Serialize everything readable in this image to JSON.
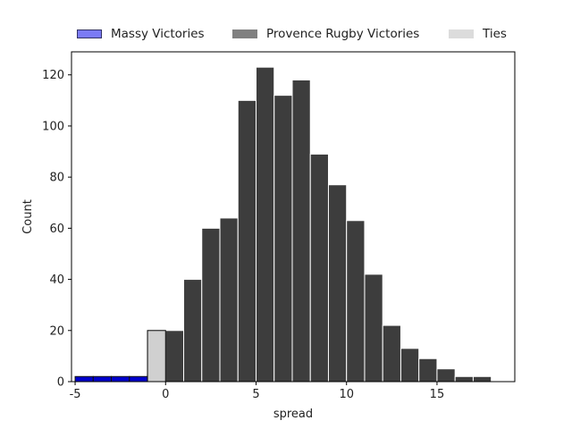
{
  "chart_data": {
    "type": "bar",
    "title": "",
    "xlabel": "spread",
    "ylabel": "Count",
    "xlim": [
      -5.2,
      19.3
    ],
    "ylim": [
      0,
      129
    ],
    "xticks": [
      -5,
      0,
      5,
      10,
      15
    ],
    "yticks": [
      0,
      20,
      40,
      60,
      80,
      100,
      120
    ],
    "bin_width": 1,
    "legend_position": "top",
    "series": [
      {
        "name": "Massy Victories",
        "color": "#0000cc",
        "legend_color": "#7b7bf5",
        "bins": [
          {
            "x": -4.5,
            "count": 2
          },
          {
            "x": -3.5,
            "count": 2
          },
          {
            "x": -2.5,
            "count": 2
          },
          {
            "x": -1.5,
            "count": 2
          },
          {
            "x": -0.5,
            "count": 3
          }
        ]
      },
      {
        "name": "Provence Rugby Victories",
        "color": "#3d3d3d",
        "legend_color": "#808080",
        "bins": [
          {
            "x": 0.5,
            "count": 20
          },
          {
            "x": 1.5,
            "count": 40
          },
          {
            "x": 2.5,
            "count": 60
          },
          {
            "x": 3.5,
            "count": 64
          },
          {
            "x": 4.5,
            "count": 110
          },
          {
            "x": 5.5,
            "count": 123
          },
          {
            "x": 6.5,
            "count": 112
          },
          {
            "x": 7.5,
            "count": 118
          },
          {
            "x": 8.5,
            "count": 89
          },
          {
            "x": 9.5,
            "count": 77
          },
          {
            "x": 10.5,
            "count": 63
          },
          {
            "x": 11.5,
            "count": 42
          },
          {
            "x": 12.5,
            "count": 22
          },
          {
            "x": 13.5,
            "count": 13
          },
          {
            "x": 14.5,
            "count": 9
          },
          {
            "x": 15.5,
            "count": 5
          },
          {
            "x": 16.5,
            "count": 2
          },
          {
            "x": 17.5,
            "count": 2
          }
        ]
      },
      {
        "name": "Ties",
        "color": "#d0d0d0",
        "legend_color": "#dcdcdc",
        "bins": [
          {
            "x": -0.5,
            "count": 20
          }
        ]
      }
    ]
  }
}
